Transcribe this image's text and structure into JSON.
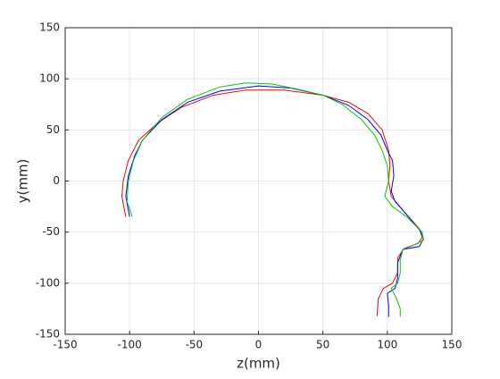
{
  "chart_data": {
    "type": "line",
    "xlabel": "z(mm)",
    "ylabel": "y(mm)",
    "xlim": [
      -150,
      150
    ],
    "ylim": [
      -150,
      150
    ],
    "xticks": [
      -150,
      -100,
      -50,
      0,
      50,
      100,
      150
    ],
    "yticks": [
      -150,
      -100,
      -50,
      0,
      50,
      100,
      150
    ],
    "grid": true,
    "series": [
      {
        "color": "#ff0000",
        "x": [
          -103,
          -106,
          -105,
          -101,
          -93,
          -78,
          -60,
          -35,
          -10,
          20,
          50,
          70,
          85,
          96,
          101,
          102,
          101,
          103,
          113,
          125,
          127,
          124,
          113,
          108,
          108,
          104,
          97,
          93,
          92
        ],
        "values": [
          -35,
          -15,
          0,
          20,
          40,
          57,
          72,
          84,
          89,
          89,
          84,
          77,
          66,
          50,
          30,
          15,
          0,
          -15,
          -30,
          -47,
          -55,
          -61,
          -66,
          -75,
          -90,
          -100,
          -105,
          -115,
          -132
        ]
      },
      {
        "color": "#0000ff",
        "x": [
          -100,
          -103,
          -101,
          -96,
          -90,
          -75,
          -55,
          -30,
          0,
          25,
          50,
          70,
          85,
          95,
          100,
          104,
          105,
          103,
          106,
          115,
          125,
          128,
          125,
          112,
          108,
          108,
          106,
          100,
          101,
          101
        ],
        "values": [
          -35,
          -15,
          5,
          25,
          40,
          60,
          77,
          88,
          93,
          91,
          84,
          74,
          60,
          45,
          30,
          20,
          5,
          -10,
          -20,
          -33,
          -48,
          -56,
          -64,
          -67,
          -80,
          -95,
          -105,
          -110,
          -122,
          -133
        ]
      },
      {
        "color": "#00cc00",
        "x": [
          -98,
          -102,
          -101,
          -97,
          -90,
          -75,
          -55,
          -30,
          -10,
          10,
          30,
          50,
          65,
          80,
          90,
          96,
          100,
          101,
          98,
          104,
          115,
          127,
          128,
          120,
          112,
          110,
          110,
          108,
          103,
          107,
          110,
          110
        ],
        "values": [
          -35,
          -20,
          0,
          20,
          40,
          62,
          80,
          92,
          96,
          95,
          90,
          84,
          75,
          60,
          45,
          30,
          15,
          0,
          -15,
          -25,
          -35,
          -50,
          -58,
          -63,
          -67,
          -78,
          -90,
          -100,
          -105,
          -115,
          -125,
          -133
        ]
      }
    ]
  }
}
